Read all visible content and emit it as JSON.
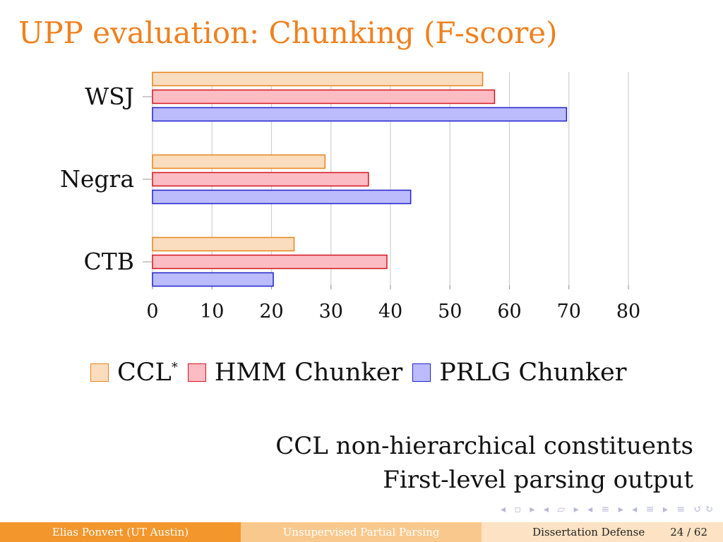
{
  "slide": {
    "title": "UPP evaluation: Chunking (F-score)",
    "notes": [
      "CCL non-hierarchical constituents",
      "First-level parsing output"
    ]
  },
  "chart_data": {
    "type": "bar",
    "orientation": "horizontal",
    "categories": [
      "WSJ",
      "Negra",
      "CTB"
    ],
    "series": [
      {
        "name": "CCL*",
        "values": [
          55.5,
          29,
          23.8
        ],
        "fill": "#fadcbf",
        "stroke": "#e8851c"
      },
      {
        "name": "HMM Chunker",
        "values": [
          57.5,
          36.3,
          39.4
        ],
        "fill": "#fcbcc4",
        "stroke": "#d4141e"
      },
      {
        "name": "PRLG Chunker",
        "values": [
          69.6,
          43.4,
          20.3
        ],
        "fill": "#bcbcfc",
        "stroke": "#2121cc"
      }
    ],
    "xlim": [
      0,
      80
    ],
    "xticks": [
      "0",
      "10",
      "20",
      "30",
      "40",
      "50",
      "60",
      "70",
      "80"
    ],
    "grid": true,
    "legend_position": "bottom"
  },
  "legend": {
    "ccl_label": "CCL",
    "ccl_sup": "*",
    "hmm_label": "HMM Chunker",
    "prlg_label": "PRLG Chunker"
  },
  "navigation": {
    "symbols": "◂ ▫ ▸ ◂ ▱ ▸ ◂ ≡ ▸ ◂ ≡ ▸ ≡ ↺↻"
  },
  "footer": {
    "author": "Elias Ponvert  (UT Austin)",
    "talk": "Unsupervised Partial Parsing",
    "event": "Dissertation Defense",
    "page": "24 / 62"
  }
}
